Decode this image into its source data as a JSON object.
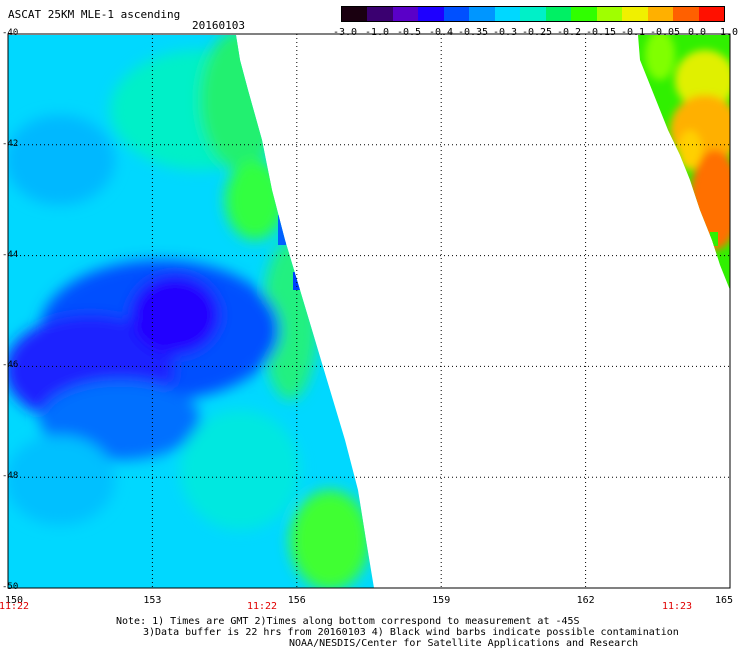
{
  "title": "ASCAT 25KM MLE-1 ascending",
  "date": "20160103",
  "colorbar": {
    "labels": [
      "-3.0",
      "-1.0",
      "-0.5",
      "-0.4",
      "-0.35",
      "-0.3",
      "-0.25",
      "-0.2",
      "-0.15",
      "-0.1",
      "-0.05",
      "0.0",
      "1.0"
    ],
    "colors": [
      "#1a0010",
      "#3a0070",
      "#5a00c8",
      "#1e00ff",
      "#0050ff",
      "#0096ff",
      "#00d8ff",
      "#00f0c8",
      "#00f064",
      "#30ff00",
      "#a0ff00",
      "#f0f000",
      "#ffb000",
      "#ff6000",
      "#ff1000"
    ]
  },
  "map": {
    "lon_labels": [
      "150",
      "153",
      "156",
      "159",
      "162",
      "165"
    ],
    "lat_labels": [
      "-40",
      "-42",
      "-44",
      "-46",
      "-48",
      "-50"
    ],
    "time_labels": [
      "11:22",
      "11:22",
      "11:23"
    ],
    "grid_lon": [
      150,
      153,
      156,
      159,
      162,
      165
    ],
    "grid_lat": [
      -40,
      -42,
      -44,
      -46,
      -48,
      -50
    ]
  },
  "notes": {
    "line1": "Note: 1) Times are GMT 2)Times along bottom correspond to measurement at -45S",
    "line2": "3)Data buffer is 22 hrs from 20160103 4) Black wind barbs indicate possible contamination",
    "line3": "NOAA/NESDIS/Center for Satellite Applications and Research"
  }
}
